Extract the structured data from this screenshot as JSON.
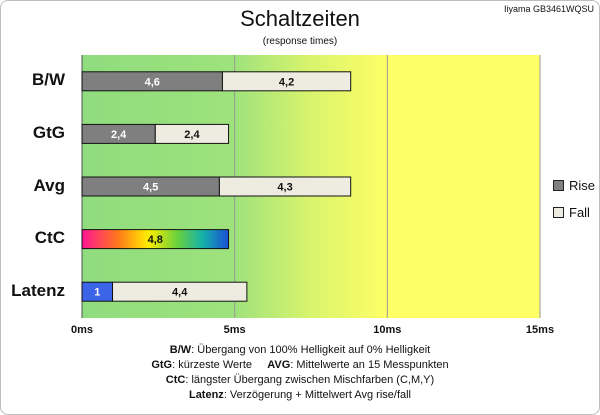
{
  "model": "Iiyama GB3461WQSU",
  "chart_data": {
    "type": "bar",
    "orientation": "horizontal",
    "stacked": true,
    "title": "Schaltzeiten",
    "subtitle": "(response times)",
    "categories": [
      "B/W",
      "GtG",
      "Avg",
      "CtC",
      "Latenz"
    ],
    "series": [
      {
        "name": "Rise",
        "values": [
          4.6,
          2.4,
          4.5,
          4.8,
          1.0
        ],
        "labels": [
          "4,6",
          "2,4",
          "4,5",
          "4,8",
          "1"
        ]
      },
      {
        "name": "Fall",
        "values": [
          4.2,
          2.4,
          4.3,
          null,
          4.4
        ],
        "labels": [
          "4,2",
          "2,4",
          "4,3",
          null,
          "4,4"
        ]
      }
    ],
    "xlim": [
      0,
      15
    ],
    "xticks": [
      0,
      5,
      10,
      15
    ],
    "xtick_labels": [
      "0ms",
      "5ms",
      "10ms",
      "15ms"
    ],
    "grid": true,
    "legend_position": "right",
    "colors": {
      "rise": "#7f7f7f",
      "fall": "#eeece1",
      "latenz_rise": "#3c64e6",
      "zone_green": "#8fdc7e",
      "zone_yellow": "#ffff66"
    }
  },
  "notes": [
    {
      "key": "B/W",
      "text": ": Übergang von 100% Helligkeit auf 0% Helligkeit"
    },
    {
      "key": "GtG",
      "text": ": kürzeste Werte",
      "key2": "AVG",
      "text2": ": Mittelwerte an 15 Messpunkten"
    },
    {
      "key": "CtC",
      "text": ": längster Übergang zwischen Mischfarben (C,M,Y)"
    },
    {
      "key": "Latenz",
      "text": ": Verzögerung + Mittelwert Avg rise/fall"
    }
  ]
}
